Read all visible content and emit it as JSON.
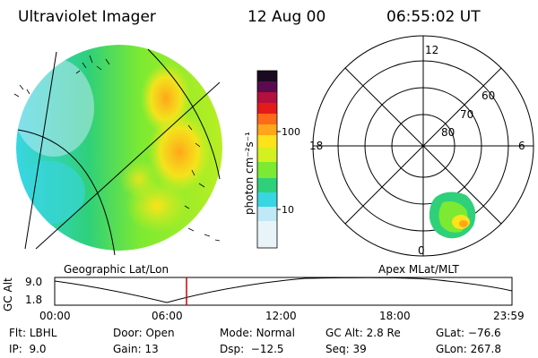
{
  "header": {
    "instrument": "Ultraviolet Imager",
    "date": "12 Aug 00",
    "time": "06:55:02 UT"
  },
  "colorbar": {
    "label": "photon cm⁻²s⁻¹",
    "ticks": [
      "100",
      "10"
    ],
    "scale": "log",
    "colors": [
      "#ffffff",
      "#bfe9f6",
      "#38d6e3",
      "#2fd07a",
      "#7cea32",
      "#d4f01e",
      "#fee21a",
      "#ffa61a",
      "#ff6a1a",
      "#e51a1a",
      "#b3103d",
      "#5a0b4f",
      "#1a0a20"
    ]
  },
  "geo_panel": {
    "label": "Geographic Lat/Lon"
  },
  "polar_panel": {
    "label": "Apex MLat/MLT",
    "mlt_labels": {
      "top": "12",
      "left": "18",
      "right": "6",
      "bottom": "0"
    },
    "mlat_labels": [
      "60",
      "70",
      "80"
    ]
  },
  "orbit_plot": {
    "ylabel": "GC Alt",
    "yticks": [
      "9.0",
      "1.8"
    ],
    "xticks": [
      "00:00",
      "06:00",
      "12:00",
      "18:00",
      "23:59"
    ],
    "current_time_hours": 6.92,
    "marker_color": "#cc0000"
  },
  "status": {
    "flt_label": "Flt:",
    "flt_value": "LBHL",
    "ip_label": "IP:",
    "ip_value": "9.0",
    "door_label": "Door:",
    "door_value": "Open",
    "gain_label": "Gain:",
    "gain_value": "13",
    "mode_label": "Mode:",
    "mode_value": "Normal",
    "dsp_label": "Dsp:",
    "dsp_value": "−12.5",
    "gcalt_label": "GC Alt:",
    "gcalt_value": "2.8 Re",
    "seq_label": "Seq:",
    "seq_value": "39",
    "glat_label": "GLat:",
    "glat_value": "−76.6",
    "glon_label": "GLon:",
    "glon_value": "267.8"
  }
}
